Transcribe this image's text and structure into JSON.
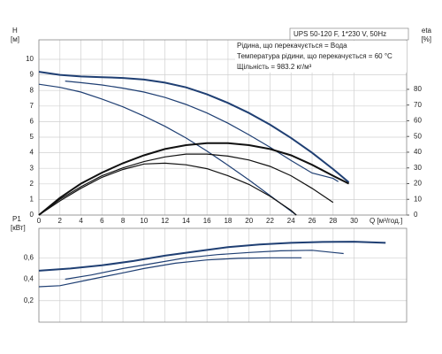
{
  "chart_data": [
    {
      "type": "line",
      "model": "UPS 50-120 F, 1*230 V, 50Hz",
      "annotations": [
        "Рідина, що перекачується = Вода",
        "Температура рідини, що перекачується = 60 °C",
        "Щільність = 983.2 кг/м³"
      ],
      "ylabel": "H",
      "yunit": "[м]",
      "y2label": "eta",
      "y2unit": "[%]",
      "xlabel": "Q [м³/год.]",
      "xlim": [
        0,
        35
      ],
      "xticks": [
        0,
        2,
        4,
        6,
        8,
        10,
        12,
        14,
        16,
        18,
        20,
        22,
        24,
        26,
        28,
        30
      ],
      "ylim": [
        0,
        11.25
      ],
      "yticks": [
        0,
        1,
        2,
        3,
        4,
        5,
        6,
        7,
        8,
        9,
        10
      ],
      "y2lim": [
        0,
        111.5
      ],
      "y2ticks": [
        0,
        10,
        20,
        30,
        40,
        50,
        60,
        70,
        80
      ],
      "grid": true,
      "series": [
        {
          "color": "#1f3f73",
          "width": 2,
          "x": [
            0,
            2,
            4,
            6,
            8,
            10,
            12,
            14,
            16,
            18,
            20,
            22,
            24,
            26,
            28,
            29.5
          ],
          "values": [
            9.2,
            9.0,
            8.9,
            8.85,
            8.8,
            8.7,
            8.5,
            8.2,
            7.75,
            7.2,
            6.55,
            5.8,
            4.95,
            4.0,
            2.95,
            2.1
          ]
        },
        {
          "color": "#1f3f73",
          "width": 1.2,
          "x": [
            2.5,
            4,
            6,
            8,
            10,
            12,
            14,
            16,
            18,
            20,
            22,
            24,
            26,
            28,
            28.5
          ],
          "values": [
            8.6,
            8.5,
            8.35,
            8.15,
            7.9,
            7.55,
            7.1,
            6.55,
            5.9,
            5.15,
            4.35,
            3.5,
            2.7,
            2.35,
            2.15
          ]
        },
        {
          "color": "#1f3f73",
          "width": 1.2,
          "x": [
            0,
            2,
            4,
            6,
            8,
            10,
            12,
            14,
            16,
            18,
            20,
            22,
            24,
            24.5
          ],
          "values": [
            8.4,
            8.2,
            7.9,
            7.45,
            6.95,
            6.35,
            5.7,
            4.95,
            4.1,
            3.2,
            2.25,
            1.25,
            0.25,
            0
          ]
        },
        {
          "color": "#111111",
          "width": 2,
          "axis": "y2",
          "x": [
            0,
            2,
            4,
            6,
            8,
            10,
            12,
            14,
            16,
            18,
            20,
            22,
            24,
            26,
            28,
            29.5
          ],
          "values": [
            0,
            11,
            20,
            27,
            33,
            38,
            42,
            44.5,
            45.8,
            45.8,
            44.5,
            42,
            38,
            32,
            25,
            20
          ]
        },
        {
          "color": "#111111",
          "width": 1.2,
          "axis": "y2",
          "x": [
            0,
            2,
            4,
            6,
            8,
            10,
            12,
            14,
            16,
            18,
            20,
            22,
            24,
            26,
            28
          ],
          "values": [
            0,
            10,
            18,
            25,
            30,
            34,
            37,
            38.8,
            38.8,
            37.5,
            35,
            31,
            25,
            17,
            8
          ]
        },
        {
          "color": "#111111",
          "width": 1.2,
          "axis": "y2",
          "x": [
            0,
            2,
            4,
            6,
            8,
            10,
            12,
            14,
            16,
            18,
            20,
            22,
            24,
            24.5
          ],
          "values": [
            0,
            9,
            17,
            24,
            29,
            32.5,
            33,
            32,
            29.5,
            25,
            19.5,
            12,
            3,
            0
          ]
        }
      ]
    },
    {
      "type": "line",
      "ylabel": "P1",
      "yunit": "[кВт]",
      "xlim": [
        0,
        35
      ],
      "xticks": [
        0,
        2,
        4,
        6,
        8,
        10,
        12,
        14,
        16,
        18,
        20,
        22,
        24,
        26,
        28,
        30
      ],
      "ylim": [
        0,
        0.875
      ],
      "yticks": [
        {
          "value": 0.2,
          "label": "0,2"
        },
        {
          "value": 0.4,
          "label": "0,4"
        },
        {
          "value": 0.6,
          "label": "0,6"
        }
      ],
      "grid": true,
      "series": [
        {
          "color": "#1f3f73",
          "width": 2,
          "x": [
            0,
            3,
            6,
            9,
            12,
            15,
            18,
            21,
            24,
            27,
            30,
            33
          ],
          "values": [
            0.48,
            0.5,
            0.53,
            0.57,
            0.62,
            0.66,
            0.7,
            0.725,
            0.74,
            0.748,
            0.75,
            0.74
          ]
        },
        {
          "color": "#1f3f73",
          "width": 1.2,
          "x": [
            2.5,
            5,
            8,
            11,
            14,
            17,
            20,
            23,
            26,
            29
          ],
          "values": [
            0.4,
            0.44,
            0.5,
            0.55,
            0.6,
            0.63,
            0.65,
            0.665,
            0.67,
            0.64
          ]
        },
        {
          "color": "#1f3f73",
          "width": 1.2,
          "x": [
            0,
            2,
            5,
            8,
            10,
            13,
            16,
            19,
            22,
            25
          ],
          "values": [
            0.33,
            0.34,
            0.4,
            0.46,
            0.5,
            0.55,
            0.58,
            0.595,
            0.6,
            0.6
          ]
        }
      ]
    }
  ]
}
